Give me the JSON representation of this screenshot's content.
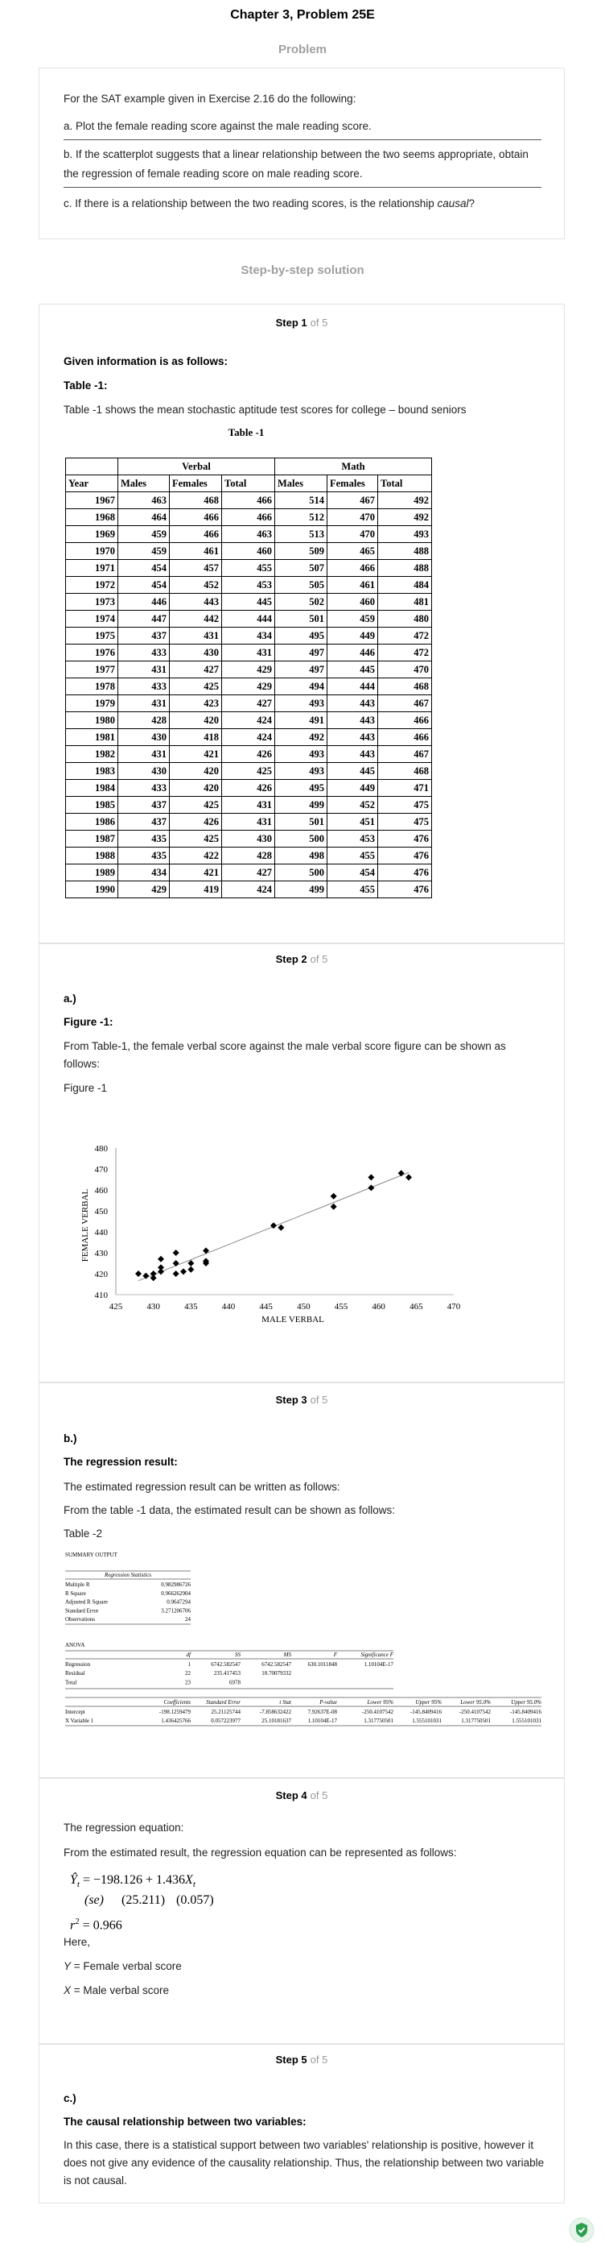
{
  "header": {
    "title": "Chapter 3, Problem 25E",
    "problem_label": "Problem",
    "solution_label": "Step-by-step solution"
  },
  "problem": {
    "intro": "For the SAT example given in Exercise 2.16 do the following:",
    "a": "a. Plot the female reading score against the male reading score.",
    "b": "b. If the scatterplot suggests that a linear relationship between the two seems appropriate, obtain the regression of female reading score on male reading score.",
    "c": [
      "c. If there is a relationship between the two reading scores, is the relationship ",
      "causal",
      "?"
    ]
  },
  "steps": [
    {
      "number": "Step 1",
      "of": "of 5",
      "heading": "Given information is as follows:",
      "subheading": "Table -1:",
      "text": "Table -1 shows the mean stochastic aptitude test scores for college – bound seniors"
    },
    {
      "number": "Step 2",
      "of": "of 5",
      "part": "a.)",
      "heading": "Figure -1:",
      "text": "From Table-1, the female verbal score against the male verbal score figure can be shown as follows:",
      "figure_label": "Figure -1"
    },
    {
      "number": "Step 3",
      "of": "of 5",
      "part": "b.)",
      "heading": "The regression result:",
      "text": "The estimated regression result can be written as follows:",
      "text2": "From the table -1 data, the estimated result can be shown as follows:",
      "table_label": "Table -2"
    },
    {
      "number": "Step 4",
      "of": "of 5",
      "text": "The regression equation:",
      "text2": "From the estimated result, the regression equation can be represented as follows:",
      "here": "Here,",
      "definitions": [
        [
          "Y",
          "= Female verbal score"
        ],
        [
          "X",
          "= Male verbal score"
        ]
      ]
    },
    {
      "number": "Step 5",
      "of": "of 5",
      "part": "c.)",
      "heading": "The causal relationship between two variables:",
      "text": "In this case, there is a statistical support between two variables' relationship is positive, however it does not give any evidence of the causality relationship. Thus, the relationship between two variable is not causal."
    }
  ],
  "table1": {
    "caption": "Table -1",
    "group_headers": [
      "Verbal",
      "Math"
    ],
    "year_header": "Year",
    "sub_headers": [
      "Males",
      "Females",
      "Total",
      "Males",
      "Females",
      "Total"
    ],
    "rows": [
      [
        1967,
        463,
        468,
        466,
        514,
        467,
        492
      ],
      [
        1968,
        464,
        466,
        466,
        512,
        470,
        492
      ],
      [
        1969,
        459,
        466,
        463,
        513,
        470,
        493
      ],
      [
        1970,
        459,
        461,
        460,
        509,
        465,
        488
      ],
      [
        1971,
        454,
        457,
        455,
        507,
        466,
        488
      ],
      [
        1972,
        454,
        452,
        453,
        505,
        461,
        484
      ],
      [
        1973,
        446,
        443,
        445,
        502,
        460,
        481
      ],
      [
        1974,
        447,
        442,
        444,
        501,
        459,
        480
      ],
      [
        1975,
        437,
        431,
        434,
        495,
        449,
        472
      ],
      [
        1976,
        433,
        430,
        431,
        497,
        446,
        472
      ],
      [
        1977,
        431,
        427,
        429,
        497,
        445,
        470
      ],
      [
        1978,
        433,
        425,
        429,
        494,
        444,
        468
      ],
      [
        1979,
        431,
        423,
        427,
        493,
        443,
        467
      ],
      [
        1980,
        428,
        420,
        424,
        491,
        443,
        466
      ],
      [
        1981,
        430,
        418,
        424,
        492,
        443,
        466
      ],
      [
        1982,
        431,
        421,
        426,
        493,
        443,
        467
      ],
      [
        1983,
        430,
        420,
        425,
        493,
        445,
        468
      ],
      [
        1984,
        433,
        420,
        426,
        495,
        449,
        471
      ],
      [
        1985,
        437,
        425,
        431,
        499,
        452,
        475
      ],
      [
        1986,
        437,
        426,
        431,
        501,
        451,
        475
      ],
      [
        1987,
        435,
        425,
        430,
        500,
        453,
        476
      ],
      [
        1988,
        435,
        422,
        428,
        498,
        455,
        476
      ],
      [
        1989,
        434,
        421,
        427,
        500,
        454,
        476
      ],
      [
        1990,
        429,
        419,
        424,
        499,
        455,
        476
      ]
    ]
  },
  "chart_data": {
    "type": "scatter",
    "xlabel": "MALE VERBAL",
    "ylabel": "FEMALE VERBAL",
    "color": "#000000",
    "trendline": true,
    "x": [
      463,
      464,
      459,
      459,
      454,
      454,
      446,
      447,
      437,
      433,
      431,
      433,
      431,
      428,
      430,
      431,
      430,
      433,
      437,
      437,
      435,
      435,
      434,
      429
    ],
    "values": [
      468,
      466,
      466,
      461,
      457,
      452,
      443,
      442,
      431,
      430,
      427,
      425,
      423,
      420,
      418,
      421,
      420,
      420,
      425,
      426,
      425,
      422,
      421,
      419
    ],
    "xlim": [
      425,
      470
    ],
    "xticks": [
      425,
      430,
      435,
      440,
      445,
      450,
      455,
      460,
      465,
      470
    ],
    "ylim": [
      410,
      480
    ],
    "yticks": [
      410,
      420,
      430,
      440,
      450,
      460,
      470,
      480
    ]
  },
  "table2": {
    "title": "SUMMARY OUTPUT",
    "stats_title": "Regression Statistics",
    "stats": [
      [
        "Multiple R",
        "0.982986726"
      ],
      [
        "R Square",
        "0.966262904"
      ],
      [
        "Adjusted R Square",
        "0.9647294"
      ],
      [
        "Standard Error",
        "3.271206706"
      ],
      [
        "Observations",
        "24"
      ]
    ],
    "anova_title": "ANOVA",
    "anova_header": [
      "df",
      "SS",
      "MS",
      "F",
      "Significance F"
    ],
    "anova_rows": [
      [
        "Regression",
        "1",
        "6742.582547",
        "6742.582547",
        "630.1011848",
        "1.10104E-17"
      ],
      [
        "Residual",
        "22",
        "235.417453",
        "10.70079332"
      ],
      [
        "Total",
        "23",
        "6978"
      ]
    ],
    "coef_header": [
      "Coefficients",
      "Standard Error",
      "t Stat",
      "P-value",
      "Lower 95%",
      "Upper 95%",
      "Lower 95.0%",
      "Upper 95.0%"
    ],
    "coef_rows": [
      [
        "Intercept",
        "-198.1259479",
        "25.21125744",
        "-7.858632422",
        "7.92637E-08",
        "-250.4107542",
        "-145.8409416",
        "-250.4107542",
        "-145.8409416"
      ],
      [
        "X Variable 1",
        "1.436425766",
        "0.057223977",
        "25.10181637",
        "1.10104E-17",
        "1.317750501",
        "1.555101031",
        "1.317750501",
        "1.555101031"
      ]
    ]
  },
  "equation": {
    "y": "Ŷ",
    "y_sub": "t",
    "middle": "= −198.126 + 1.436",
    "x": "X",
    "x_sub": "t",
    "se_label": "(se)",
    "se": [
      "(25.211)",
      "(0.057)"
    ],
    "r": "r",
    "r_sup": "2",
    "r_value": "= 0.966"
  }
}
